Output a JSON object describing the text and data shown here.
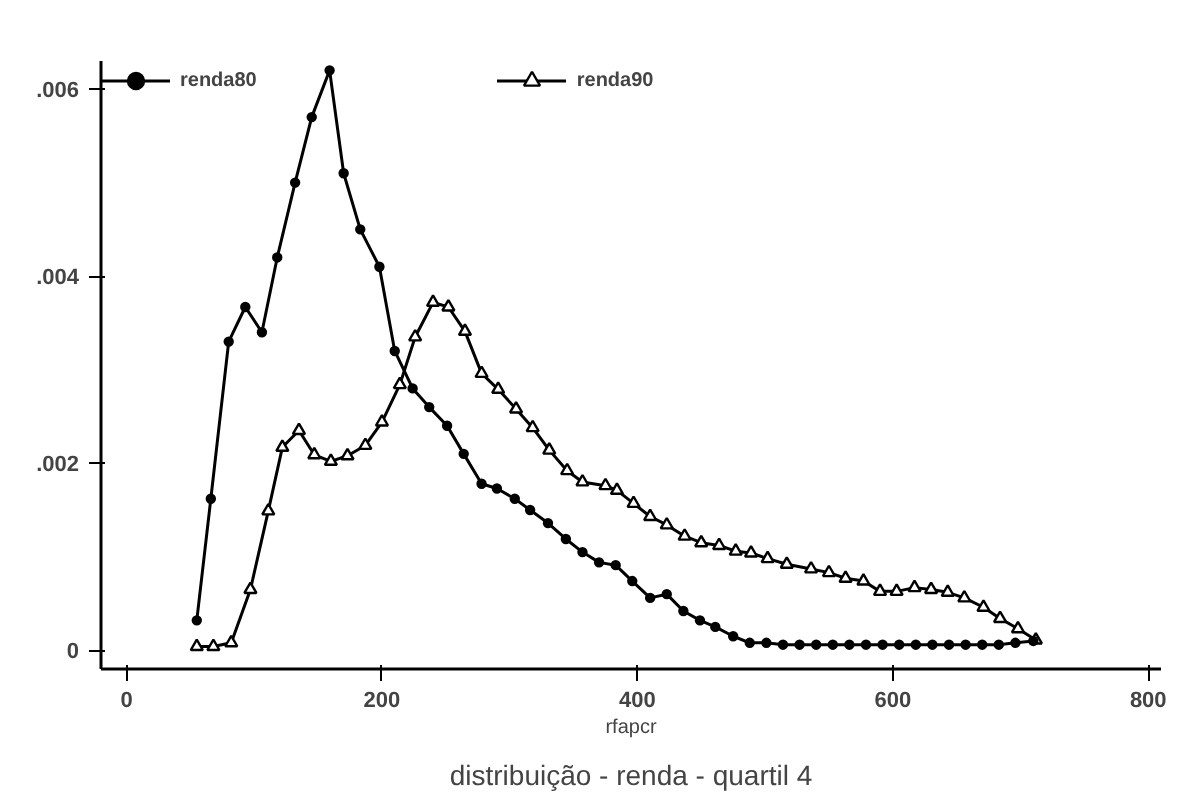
{
  "chart_data": {
    "type": "line",
    "title": "distribuição - renda - quartil 4",
    "xlabel": "rfapcr",
    "xlim": [
      -20,
      810
    ],
    "ylim": [
      -0.0002,
      0.0063
    ],
    "xticks": [
      0,
      200,
      400,
      600,
      800
    ],
    "yticks": [
      {
        "value": 0,
        "label": "0"
      },
      {
        "value": 0.002,
        "label": ".002"
      },
      {
        "value": 0.004,
        "label": ".004"
      },
      {
        "value": 0.006,
        "label": ".006"
      }
    ],
    "grid": false,
    "legend": "top",
    "line_style": "solid",
    "series": [
      {
        "name": "renda80",
        "color": "#000000",
        "marker": "circle",
        "x": [
          55,
          66,
          80,
          93,
          106,
          118,
          132,
          145,
          159,
          170,
          183,
          198,
          210,
          224,
          237,
          251,
          264,
          278,
          290,
          304,
          316,
          330,
          344,
          357,
          370,
          383,
          396,
          410,
          423,
          436,
          449,
          461,
          475,
          488,
          501,
          514,
          527,
          540,
          553,
          566,
          579,
          592,
          605,
          618,
          631,
          644,
          657,
          670,
          683,
          696,
          710
        ],
        "values": [
          0.00032,
          0.00162,
          0.0033,
          0.00367,
          0.0034,
          0.0042,
          0.005,
          0.0057,
          0.0062,
          0.0051,
          0.0045,
          0.0041,
          0.0032,
          0.0028,
          0.0026,
          0.0024,
          0.0021,
          0.00178,
          0.00173,
          0.00162,
          0.0015,
          0.00136,
          0.00119,
          0.00105,
          0.00094,
          0.00091,
          0.00074,
          0.00056,
          0.0006,
          0.00042,
          0.00032,
          0.00025,
          0.00015,
          8e-05,
          8e-05,
          6e-05,
          6e-05,
          6e-05,
          6e-05,
          6e-05,
          6e-05,
          6e-05,
          6e-05,
          6e-05,
          6e-05,
          6e-05,
          6e-05,
          6e-05,
          6e-05,
          8e-05,
          0.0001
        ]
      },
      {
        "name": "renda90",
        "color": "#000000",
        "marker": "triangle",
        "x": [
          55,
          68,
          82,
          97,
          111,
          122,
          135,
          147,
          160,
          173,
          187,
          200,
          214,
          226,
          240,
          252,
          265,
          278,
          291,
          305,
          318,
          331,
          345,
          357,
          375,
          384,
          397,
          410,
          423,
          437,
          450,
          464,
          477,
          489,
          502,
          517,
          536,
          550,
          563,
          577,
          590,
          603,
          617,
          630,
          643,
          656,
          671,
          684,
          698,
          712
        ],
        "values": [
          4e-05,
          4e-05,
          8e-05,
          0.00065,
          0.00149,
          0.00217,
          0.00235,
          0.00209,
          0.00202,
          0.00208,
          0.00219,
          0.00244,
          0.00284,
          0.00335,
          0.00372,
          0.00367,
          0.00341,
          0.00296,
          0.00279,
          0.00258,
          0.00238,
          0.00214,
          0.00192,
          0.0018,
          0.00176,
          0.00171,
          0.00157,
          0.00143,
          0.00134,
          0.00122,
          0.00115,
          0.00112,
          0.00106,
          0.00104,
          0.00098,
          0.00092,
          0.00087,
          0.00083,
          0.00077,
          0.00074,
          0.00063,
          0.00063,
          0.00067,
          0.00065,
          0.00062,
          0.00056,
          0.00046,
          0.00034,
          0.00023,
          0.00011
        ]
      }
    ]
  }
}
